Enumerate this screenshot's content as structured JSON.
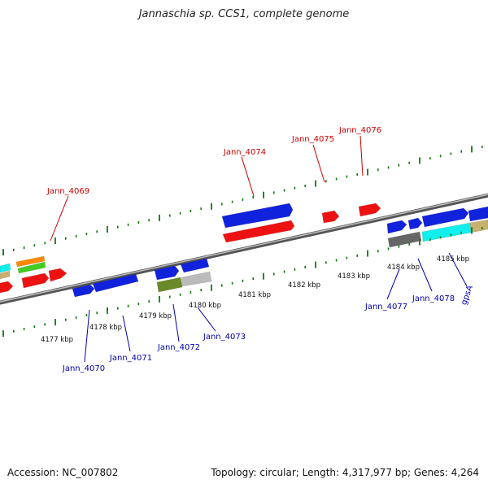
{
  "title": "Jannaschia sp. CCS1, complete genome",
  "footer": {
    "accession": "Accession: NC_007802",
    "summary": "Topology: circular; Length: 4,317,977 bp; Genes: 4,264"
  },
  "kbp_labels": [
    "4177 kbp",
    "4178 kbp",
    "4179 kbp",
    "4180 kbp",
    "4181 kbp",
    "4182 kbp",
    "4183 kbp",
    "4184 kbp",
    "4185 kbp"
  ],
  "top_gene_labels": [
    "Jann_4069",
    "Jann_4074",
    "Jann_4075",
    "Jann_4076"
  ],
  "bottom_gene_labels": [
    "Jann_4070",
    "Jann_4071",
    "Jann_4072",
    "Jann_4073",
    "Jann_4077",
    "Jann_4078",
    "gpsA"
  ],
  "colors": {
    "top_label": "#cc0000",
    "bottom_label": "#0000aa",
    "tick": "#117711",
    "backbone": "#8a8a8a",
    "red_gene": "#ee1111",
    "blue_gene": "#1122dd",
    "cyan_gene": "#11eeee",
    "tan_gene": "#c8b070",
    "gray_gene": "#666666",
    "lightgray_gene": "#bbbbbb",
    "olive_gene": "#6a8a2a",
    "orange_gene": "#ff8800",
    "green_gene": "#44cc22"
  }
}
